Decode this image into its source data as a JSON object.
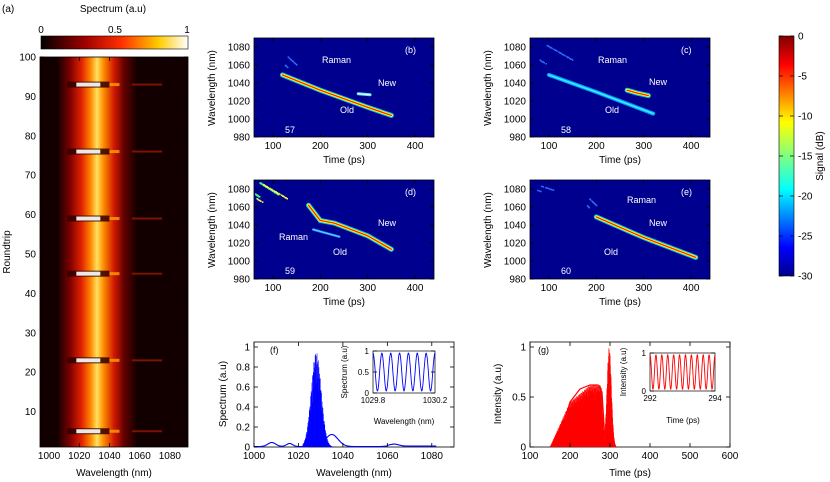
{
  "figure": {
    "panel_a_letter": "(a)",
    "colorbar_a_title": "Spectrum (a.u)",
    "colorbar_a_ticks": [
      "0",
      "0.5",
      "1"
    ],
    "colorbar_signal_title": "Signal (dB)",
    "colorbar_signal_ticks": [
      "0",
      "-5",
      "-10",
      "-15",
      "-20",
      "-25",
      "-30"
    ]
  },
  "chart_data": [
    {
      "panel": "(a)",
      "type": "heatmap",
      "xlabel": "Wavelength (nm)",
      "ylabel": "Roundtrip",
      "xlim": [
        994,
        1092
      ],
      "ylim": [
        1,
        100
      ],
      "xticks": [
        "1000",
        "1020",
        "1040",
        "1060",
        "1080"
      ],
      "yticks": [
        "10",
        "20",
        "30",
        "40",
        "50",
        "60",
        "70",
        "80",
        "90",
        "100"
      ],
      "colorbar": {
        "label": "Spectrum (a.u)",
        "range": [
          0,
          1
        ]
      },
      "central_band_nm": 1026,
      "burst_roundtrips": [
        5,
        23,
        45,
        59,
        76,
        93
      ]
    },
    {
      "panel": "(b)",
      "type": "heatmap",
      "roundtrip": "57",
      "xlabel": "Time (ps)",
      "ylabel": "Wavelength (nm)",
      "xlim": [
        60,
        440
      ],
      "ylim": [
        980,
        1090
      ],
      "xticks": [
        "100",
        "200",
        "300",
        "400"
      ],
      "yticks": [
        "980",
        "1000",
        "1020",
        "1040",
        "1060",
        "1080"
      ],
      "labels": [
        "Raman",
        "New",
        "Old"
      ]
    },
    {
      "panel": "(c)",
      "type": "heatmap",
      "roundtrip": "58",
      "xlabel": "Time (ps)",
      "ylabel": "Wavelength (nm)",
      "xlim": [
        60,
        440
      ],
      "ylim": [
        980,
        1090
      ],
      "xticks": [
        "100",
        "200",
        "300",
        "400"
      ],
      "yticks": [
        "980",
        "1000",
        "1020",
        "1040",
        "1060",
        "1080"
      ],
      "labels": [
        "Raman",
        "New",
        "Old"
      ]
    },
    {
      "panel": "(d)",
      "type": "heatmap",
      "roundtrip": "59",
      "xlabel": "Time (ps)",
      "ylabel": "Wavelength (nm)",
      "xlim": [
        60,
        440
      ],
      "ylim": [
        980,
        1090
      ],
      "xticks": [
        "100",
        "200",
        "300",
        "400"
      ],
      "yticks": [
        "980",
        "1000",
        "1020",
        "1040",
        "1060",
        "1080"
      ],
      "labels": [
        "Raman",
        "New",
        "Old"
      ]
    },
    {
      "panel": "(e)",
      "type": "heatmap",
      "roundtrip": "60",
      "xlabel": "Time (ps)",
      "ylabel": "Wavelength (nm)",
      "xlim": [
        60,
        440
      ],
      "ylim": [
        980,
        1090
      ],
      "xticks": [
        "100",
        "200",
        "300",
        "400"
      ],
      "yticks": [
        "980",
        "1000",
        "1020",
        "1040",
        "1060",
        "1080"
      ],
      "labels": [
        "Raman",
        "New",
        "Old"
      ]
    },
    {
      "panel": "(f)",
      "type": "line",
      "xlabel": "Wavelength (nm)",
      "ylabel": "Spectrum (a.u)",
      "xlim": [
        1000,
        1090
      ],
      "ylim": [
        0,
        1.05
      ],
      "xticks": [
        "1000",
        "1020",
        "1040",
        "1060",
        "1080"
      ],
      "yticks": [
        "0",
        "0.2",
        "0.4",
        "0.6",
        "0.8",
        "1"
      ],
      "color": "#0000ff",
      "inset": {
        "xlabel": "Wavelength (nm)",
        "ylabel": "Spectrum (a.u)",
        "xlim": [
          1029.8,
          1030.2
        ],
        "ylim": [
          0,
          1
        ],
        "xticks": [
          "1029.8",
          "1030.2"
        ],
        "yticks": [
          "0",
          "0.5",
          "1"
        ],
        "fringes": 7
      }
    },
    {
      "panel": "(g)",
      "type": "line",
      "xlabel": "Time (ps)",
      "ylabel": "Intensity (a.u)",
      "xlim": [
        100,
        600
      ],
      "ylim": [
        0,
        1.05
      ],
      "xticks": [
        "100",
        "200",
        "300",
        "400",
        "500",
        "600"
      ],
      "yticks": [
        "0",
        "0.5",
        "1"
      ],
      "color": "#ff0000",
      "inset": {
        "xlabel": "Time (ps)",
        "ylabel": "Intensity (a.u)",
        "xlim": [
          292,
          294
        ],
        "ylim": [
          0,
          1
        ],
        "xticks": [
          "292",
          "294"
        ],
        "yticks": [
          "0",
          "1"
        ],
        "fringes": 11
      }
    }
  ]
}
